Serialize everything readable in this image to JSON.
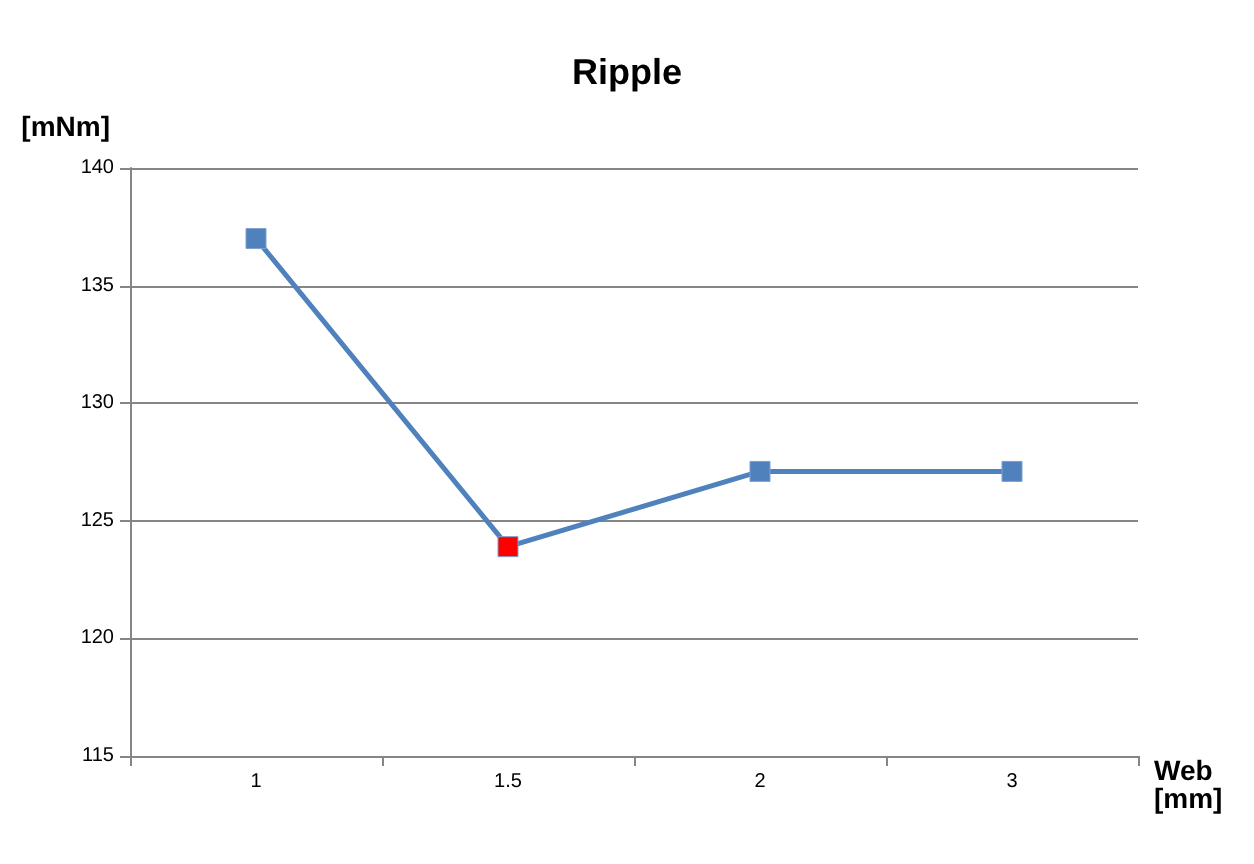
{
  "chart_data": {
    "type": "line",
    "title": "Ripple",
    "xlabel": "Web [mm]",
    "ylabel": "[mNm]",
    "categories": [
      "1",
      "1.5",
      "2",
      "3"
    ],
    "series": [
      {
        "color": "#4f81bd",
        "colors": [
          "#4f81bd",
          "#ff0000",
          "#4f81bd",
          "#4f81bd"
        ],
        "values": [
          137,
          123.9,
          127.1,
          127.1
        ]
      }
    ],
    "ylim": [
      115,
      140
    ],
    "yticks": [
      115,
      120,
      125,
      130,
      135,
      140
    ],
    "grid": "y",
    "marker": "square",
    "line_style": "solid"
  }
}
